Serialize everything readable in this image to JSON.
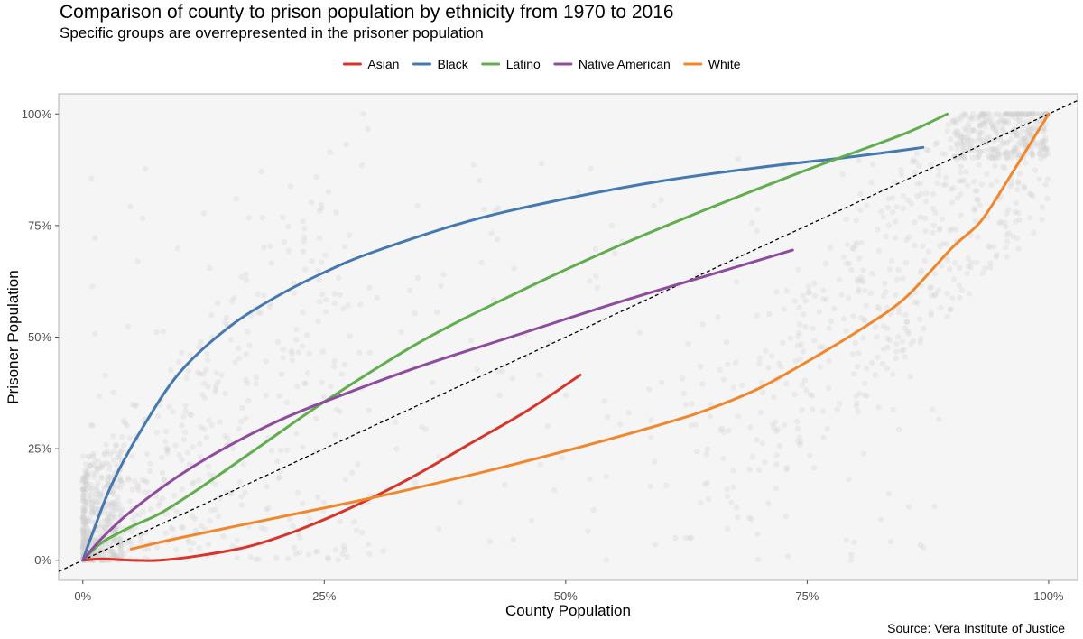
{
  "title": "Comparison of county to prison population by ethnicity from 1970 to 2016",
  "subtitle": "Specific groups are overrepresented in the prisoner population",
  "caption": "Source: Vera Institute of Justice",
  "chart_data": {
    "type": "line",
    "xlabel": "County Population",
    "ylabel": "Prisoner Population",
    "x_ticks": [
      "0%",
      "25%",
      "50%",
      "75%",
      "100%"
    ],
    "y_ticks": [
      "0%",
      "25%",
      "50%",
      "75%",
      "100%"
    ],
    "xlim": [
      -0.025,
      1.03
    ],
    "ylim": [
      -0.045,
      1.045
    ],
    "grid": false,
    "legend_position": "top",
    "reference_line": {
      "type": "identity",
      "style": "dashed",
      "color": "#000000"
    },
    "background_points": {
      "description": "county observations",
      "color": "#cccccc"
    },
    "series": [
      {
        "name": "Asian",
        "color": "#d7342b",
        "x": [
          0.0,
          0.02,
          0.05,
          0.08,
          0.12,
          0.17,
          0.22,
          0.28,
          0.34,
          0.4,
          0.46,
          0.515
        ],
        "y": [
          0.0,
          0.003,
          0.0,
          0.0,
          0.01,
          0.03,
          0.065,
          0.12,
          0.185,
          0.26,
          0.335,
          0.415
        ]
      },
      {
        "name": "Black",
        "color": "#4679b0",
        "x": [
          0.0,
          0.01,
          0.03,
          0.06,
          0.1,
          0.15,
          0.2,
          0.25,
          0.3,
          0.4,
          0.5,
          0.6,
          0.7,
          0.8,
          0.87
        ],
        "y": [
          0.0,
          0.06,
          0.17,
          0.29,
          0.42,
          0.52,
          0.59,
          0.645,
          0.69,
          0.76,
          0.81,
          0.85,
          0.88,
          0.905,
          0.925
        ]
      },
      {
        "name": "Latino",
        "color": "#61ad50",
        "x": [
          0.0,
          0.02,
          0.05,
          0.08,
          0.12,
          0.18,
          0.25,
          0.35,
          0.45,
          0.55,
          0.65,
          0.75,
          0.85,
          0.895
        ],
        "y": [
          0.0,
          0.04,
          0.075,
          0.105,
          0.16,
          0.25,
          0.355,
          0.49,
          0.6,
          0.7,
          0.79,
          0.875,
          0.955,
          1.0
        ]
      },
      {
        "name": "Native American",
        "color": "#8f4c9f",
        "x": [
          0.0,
          0.02,
          0.05,
          0.1,
          0.15,
          0.2,
          0.25,
          0.35,
          0.45,
          0.55,
          0.65,
          0.735
        ],
        "y": [
          0.0,
          0.05,
          0.11,
          0.19,
          0.255,
          0.31,
          0.355,
          0.435,
          0.505,
          0.575,
          0.64,
          0.695
        ]
      },
      {
        "name": "White",
        "color": "#f0872c",
        "x": [
          0.05,
          0.1,
          0.2,
          0.3,
          0.4,
          0.5,
          0.6,
          0.65,
          0.7,
          0.75,
          0.8,
          0.85,
          0.9,
          0.93,
          0.96,
          0.98,
          1.0
        ],
        "y": [
          0.025,
          0.05,
          0.095,
          0.14,
          0.19,
          0.245,
          0.305,
          0.34,
          0.385,
          0.445,
          0.51,
          0.585,
          0.7,
          0.76,
          0.86,
          0.93,
          1.0
        ]
      }
    ]
  }
}
